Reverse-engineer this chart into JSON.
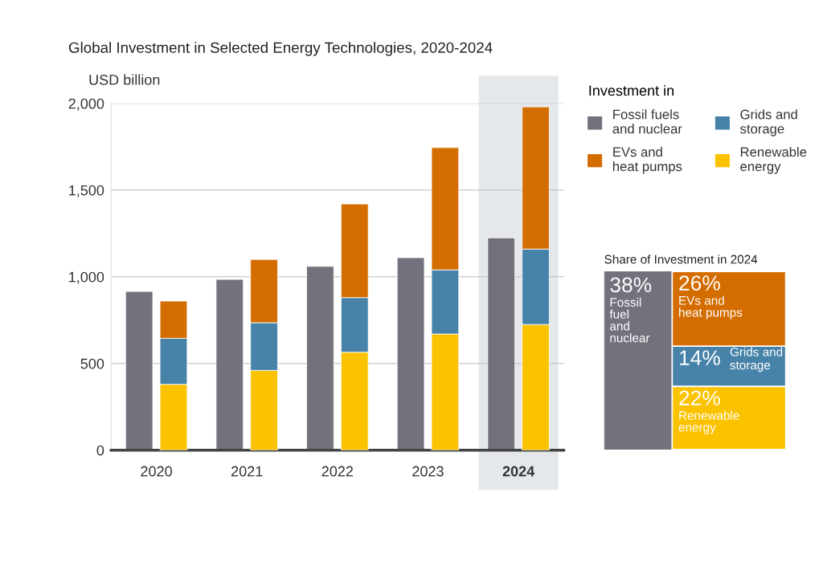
{
  "chart_data": [
    {
      "type": "bar",
      "title": "Global Investment in Selected Energy Technologies, 2020-2024",
      "ylabel": "USD billion",
      "legend_title": "Investment in",
      "categories": [
        "2020",
        "2021",
        "2022",
        "2023",
        "2024"
      ],
      "series": [
        {
          "name": "Fossil fuels\nand nuclear",
          "color": "#74717d",
          "values": [
            915,
            985,
            1060,
            1110,
            1225
          ]
        }
      ],
      "ylim": [
        0,
        2000
      ],
      "yticks": [
        {
          "value": 0,
          "label": "0"
        },
        {
          "value": 500,
          "label": "500"
        },
        {
          "value": 1000,
          "label": "1,000"
        },
        {
          "value": 1500,
          "label": "1,500"
        },
        {
          "value": 2000,
          "label": "2,000"
        }
      ],
      "bands": [
        {
          "axis": "x",
          "from": "2024",
          "to": "2024",
          "color": "#e5e8eb"
        }
      ],
      "grid": "y",
      "legend": "right"
    },
    {
      "type": "bar",
      "stacked": true,
      "tick_labels": false,
      "categories": [
        "2020",
        "2021",
        "2022",
        "2023",
        "2024"
      ],
      "series": [
        {
          "name": "Renewable\nenergy",
          "color": "#fbc200",
          "values": [
            380,
            460,
            565,
            670,
            725
          ]
        },
        {
          "name": "Grids and\nstorage",
          "color": "#4782a9",
          "values": [
            265,
            275,
            315,
            370,
            435
          ]
        },
        {
          "name": "EVs and\nheat pumps",
          "color": "#d46d00",
          "values": [
            215,
            365,
            540,
            705,
            820
          ]
        }
      ],
      "ylim": [
        0,
        2000
      ],
      "legend": "right"
    },
    {
      "type": "other",
      "title": "Share of Investment in 2024",
      "categories": [
        "Fossil\nfuel\nand\nnuclear",
        "EVs and\nheat pumps",
        "Grids and\nstorage",
        "Renewable\nenergy"
      ],
      "values": [
        38,
        26,
        14,
        22
      ],
      "value_labels": [
        "38%",
        "26%",
        "14%",
        "22%"
      ],
      "colors": [
        "#74717d",
        "#d46d00",
        "#4782a9",
        "#fbc200"
      ]
    }
  ]
}
